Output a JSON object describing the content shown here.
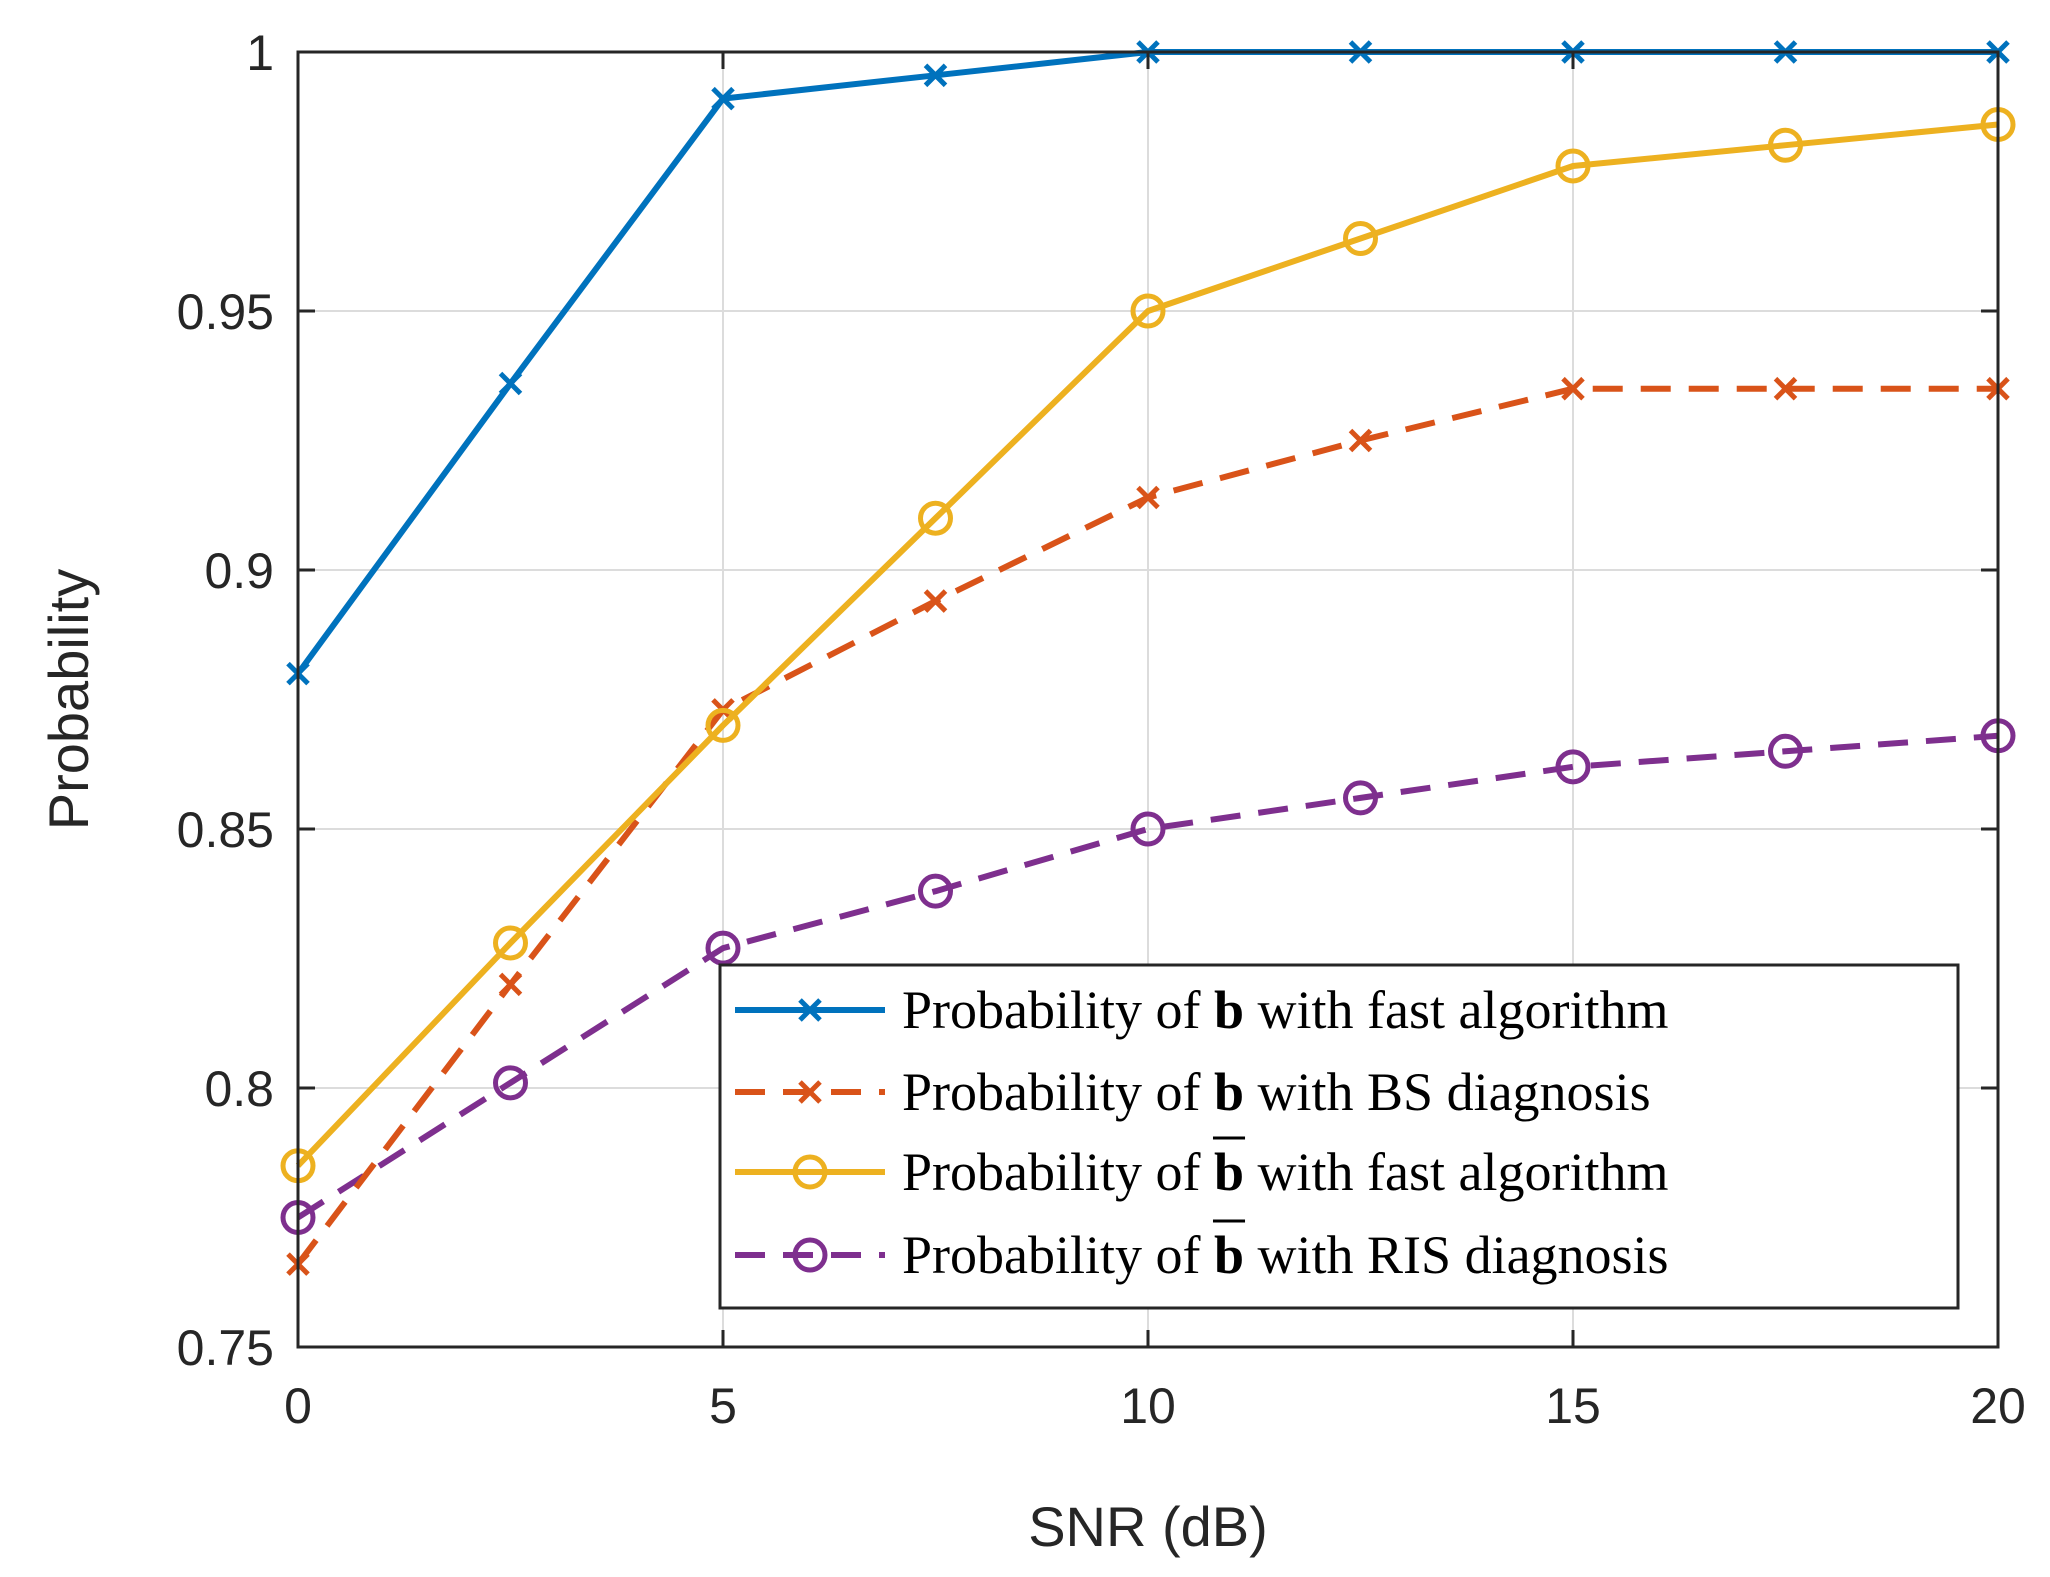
{
  "chart_data": {
    "type": "line",
    "title": "",
    "xlabel": "SNR (dB)",
    "ylabel": "Probability",
    "xlim": [
      0,
      20
    ],
    "ylim": [
      0.75,
      1
    ],
    "xticks": [
      0,
      5,
      10,
      15,
      20
    ],
    "xtick_labels": [
      "0",
      "5",
      "10",
      "15",
      "20"
    ],
    "yticks": [
      0.75,
      0.8,
      0.85,
      0.9,
      0.95,
      1
    ],
    "ytick_labels": [
      "0.75",
      "0.8",
      "0.85",
      "0.9",
      "0.95",
      "1"
    ],
    "grid": true,
    "legend_position": "bottom-right",
    "x": [
      0,
      2.5,
      5,
      7.5,
      10,
      12.5,
      15,
      17.5,
      20
    ],
    "series": [
      {
        "name": "Probability of b with fast algorithm",
        "legend": {
          "pre": "Probability of ",
          "sym": "b",
          "overline": false,
          "post": " with fast algorithm"
        },
        "color": "#0072BD",
        "dash": "solid",
        "marker": "x",
        "values": [
          0.88,
          0.936,
          0.991,
          0.9955,
          1.0,
          1.0,
          1.0,
          1.0,
          1.0
        ]
      },
      {
        "name": "Probability of b with BS diagnosis",
        "legend": {
          "pre": "Probability of ",
          "sym": "b",
          "overline": false,
          "post": " with BS diagnosis"
        },
        "color": "#D95319",
        "dash": "dashed",
        "marker": "x",
        "values": [
          0.766,
          0.82,
          0.873,
          0.894,
          0.914,
          0.925,
          0.935,
          0.935,
          0.935
        ]
      },
      {
        "name": "Probability of b̄ with fast algorithm",
        "legend": {
          "pre": "Probability of ",
          "sym": "b",
          "overline": true,
          "post": " with fast algorithm"
        },
        "color": "#EDB120",
        "dash": "solid",
        "marker": "o",
        "values": [
          0.785,
          0.828,
          0.87,
          0.91,
          0.95,
          0.964,
          0.978,
          0.982,
          0.986
        ]
      },
      {
        "name": "Probability of b̄ with RIS diagnosis",
        "legend": {
          "pre": "Probability of ",
          "sym": "b",
          "overline": true,
          "post": " with RIS diagnosis"
        },
        "color": "#7E2F8E",
        "dash": "dashed",
        "marker": "o",
        "values": [
          0.775,
          0.801,
          0.827,
          0.838,
          0.85,
          0.856,
          0.862,
          0.865,
          0.868
        ]
      }
    ]
  }
}
